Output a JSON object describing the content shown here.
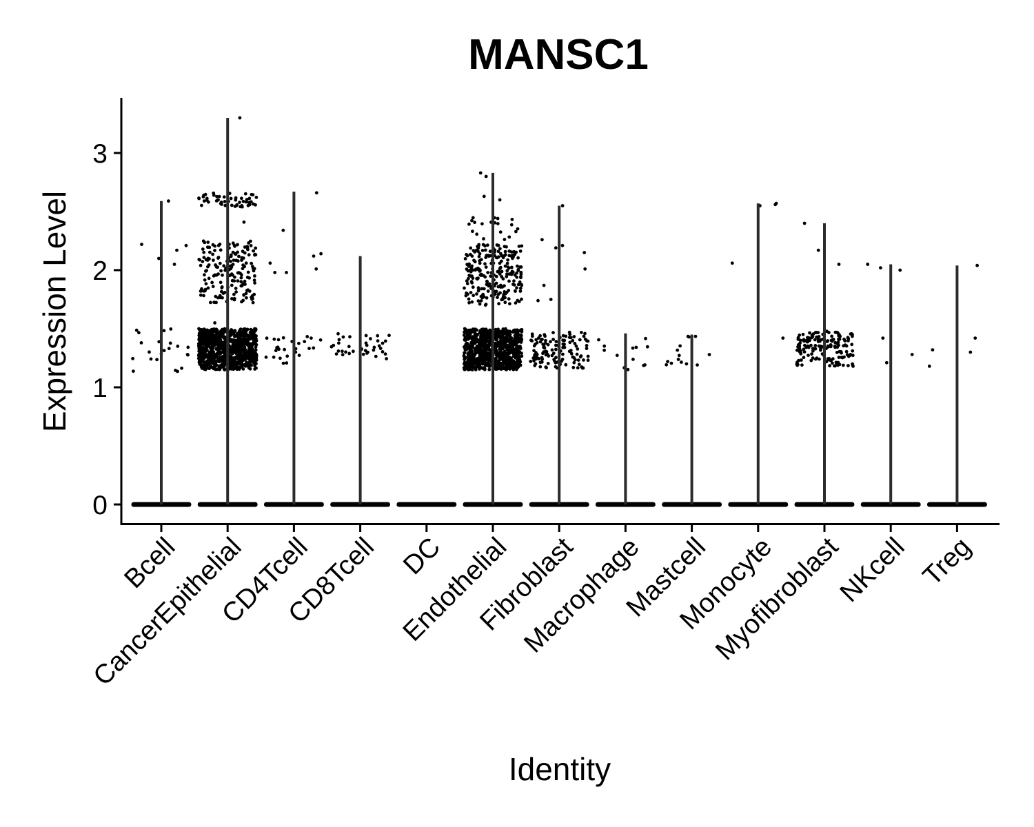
{
  "chart_data": {
    "type": "violin",
    "title": "MANSC1",
    "xlabel": "Identity",
    "ylabel": "Expression Level",
    "ylim": [
      -0.16,
      3.48
    ],
    "yticks": [
      0,
      1,
      2,
      3
    ],
    "grid": false,
    "legend": "none",
    "categories": [
      "Bcell",
      "CancerEpithelial",
      "CD4Tcell",
      "CD8Tcell",
      "DC",
      "Endothelial",
      "Fibroblast",
      "Macrophage",
      "Mastcell",
      "Monocyte",
      "Myofibroblast",
      "NKcell",
      "Treg"
    ],
    "violin_max": [
      2.59,
      3.3,
      2.67,
      2.12,
      0,
      2.83,
      2.55,
      1.46,
      1.45,
      2.57,
      2.4,
      2.05,
      2.04
    ],
    "point_groups": [
      {
        "category": "Bcell",
        "clusters": [
          {
            "y_min": 1.13,
            "y_max": 1.5,
            "count": 22
          }
        ],
        "extra_points": [
          2.59,
          2.22,
          2.21,
          2.17,
          2.1,
          2.05
        ]
      },
      {
        "category": "CancerEpithelial",
        "clusters": [
          {
            "y_min": 1.15,
            "y_max": 1.5,
            "count": 900
          },
          {
            "y_min": 1.72,
            "y_max": 2.25,
            "count": 180
          },
          {
            "y_min": 2.54,
            "y_max": 2.66,
            "count": 50
          }
        ],
        "extra_points": [
          3.3,
          2.41,
          1.55
        ]
      },
      {
        "category": "CD4Tcell",
        "clusters": [
          {
            "y_min": 1.2,
            "y_max": 1.45,
            "count": 26
          }
        ],
        "extra_points": [
          2.66,
          2.34,
          2.14,
          2.12,
          2.06,
          2.01,
          1.98,
          1.98
        ]
      },
      {
        "category": "CD8Tcell",
        "clusters": [
          {
            "y_min": 1.22,
            "y_max": 1.46,
            "count": 38
          }
        ],
        "extra_points": []
      },
      {
        "category": "DC",
        "clusters": [],
        "extra_points": []
      },
      {
        "category": "Endothelial",
        "clusters": [
          {
            "y_min": 1.15,
            "y_max": 1.5,
            "count": 900
          },
          {
            "y_min": 1.7,
            "y_max": 2.22,
            "count": 240
          },
          {
            "y_min": 2.25,
            "y_max": 2.45,
            "count": 20
          }
        ],
        "extra_points": [
          2.83,
          2.8,
          2.63,
          2.6
        ]
      },
      {
        "category": "Fibroblast",
        "clusters": [
          {
            "y_min": 1.16,
            "y_max": 1.47,
            "count": 130
          }
        ],
        "extra_points": [
          2.55,
          2.26,
          2.21,
          2.19,
          2.15,
          2.01,
          1.87,
          1.75,
          1.74
        ]
      },
      {
        "category": "Macrophage",
        "clusters": [
          {
            "y_min": 1.15,
            "y_max": 1.42,
            "count": 14
          }
        ],
        "extra_points": []
      },
      {
        "category": "Mastcell",
        "clusters": [
          {
            "y_min": 1.18,
            "y_max": 1.45,
            "count": 14
          }
        ],
        "extra_points": []
      },
      {
        "category": "Monocyte",
        "clusters": [],
        "extra_points": [
          2.57,
          2.56,
          2.55,
          2.06,
          1.42
        ]
      },
      {
        "category": "Myofibroblast",
        "clusters": [
          {
            "y_min": 1.18,
            "y_max": 1.48,
            "count": 170
          }
        ],
        "extra_points": [
          2.4,
          2.17,
          2.05
        ]
      },
      {
        "category": "NKcell",
        "clusters": [],
        "extra_points": [
          2.05,
          2.02,
          2.0,
          1.42,
          1.28,
          1.21
        ]
      },
      {
        "category": "Treg",
        "clusters": [],
        "extra_points": [
          2.04,
          1.42,
          1.32,
          1.3,
          1.18
        ]
      }
    ]
  }
}
